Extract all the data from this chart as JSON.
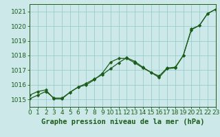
{
  "xlabel": "Graphe pression niveau de la mer (hPa)",
  "xlim": [
    0,
    23
  ],
  "ylim": [
    1014.5,
    1021.5
  ],
  "yticks": [
    1015,
    1016,
    1017,
    1018,
    1019,
    1020,
    1021
  ],
  "xticks": [
    0,
    1,
    2,
    3,
    4,
    5,
    6,
    7,
    8,
    9,
    10,
    11,
    12,
    13,
    14,
    15,
    16,
    17,
    18,
    19,
    20,
    21,
    22,
    23
  ],
  "bg_color": "#cce8e8",
  "grid_color": "#99cccc",
  "line_color": "#1a5c1a",
  "line1_x": [
    0,
    1,
    2,
    3,
    4,
    5,
    6,
    7,
    8,
    9,
    10,
    11,
    12,
    13,
    14,
    15,
    16,
    17,
    18,
    19,
    20,
    21,
    22,
    23
  ],
  "line1_y": [
    1015.3,
    1015.55,
    1015.65,
    1015.05,
    1015.05,
    1015.5,
    1015.85,
    1016.0,
    1016.35,
    1016.8,
    1017.55,
    1017.8,
    1017.8,
    1017.5,
    1017.15,
    1016.85,
    1016.6,
    1017.15,
    1017.2,
    1018.0,
    1019.8,
    1020.05,
    1020.85,
    1021.15
  ],
  "line2_x": [
    0,
    1,
    2,
    3,
    4,
    5,
    6,
    7,
    8,
    9,
    10,
    11,
    12,
    13,
    14,
    15,
    16,
    17,
    18,
    19,
    20,
    21,
    22,
    23
  ],
  "line2_y": [
    1015.05,
    1015.3,
    1015.55,
    1015.1,
    1015.1,
    1015.5,
    1015.85,
    1016.1,
    1016.4,
    1016.7,
    1017.1,
    1017.5,
    1017.85,
    1017.6,
    1017.2,
    1016.85,
    1016.5,
    1017.1,
    1017.15,
    1018.0,
    1019.75,
    1020.05,
    1020.85,
    1021.15
  ],
  "font_color": "#1a5c1a",
  "font_size": 6.5,
  "xlabel_font_size": 7.5
}
